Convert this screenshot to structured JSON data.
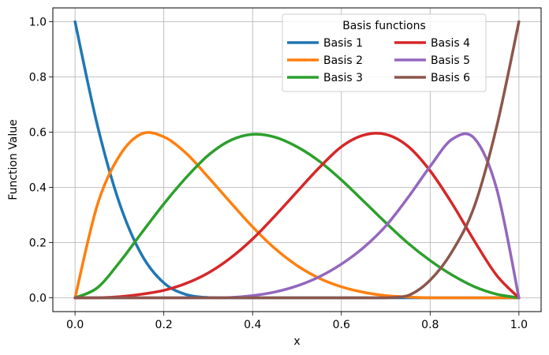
{
  "chart_data": {
    "type": "line",
    "xlabel": "x",
    "ylabel": "Function Value",
    "xlim": [
      -0.05,
      1.05
    ],
    "ylim": [
      -0.05,
      1.05
    ],
    "xticks": [
      0.0,
      0.2,
      0.4,
      0.6,
      0.8,
      1.0
    ],
    "yticks": [
      0.0,
      0.2,
      0.4,
      0.6,
      0.8,
      1.0
    ],
    "xtick_labels": [
      "0.0",
      "0.2",
      "0.4",
      "0.6",
      "0.8",
      "1.0"
    ],
    "ytick_labels": [
      "0.0",
      "0.2",
      "0.4",
      "0.6",
      "0.8",
      "1.0"
    ],
    "grid": true,
    "legend": {
      "title": "Basis functions",
      "placement": "top-right",
      "columns": 2
    },
    "x": [
      0.0,
      0.05,
      0.1,
      0.15,
      0.2,
      0.25,
      0.3,
      0.35,
      0.4,
      0.45,
      0.5,
      0.55,
      0.6,
      0.65,
      0.7,
      0.75,
      0.8,
      0.85,
      0.9,
      0.95,
      1.0
    ],
    "series": [
      {
        "name": "Basis 1",
        "color": "#1f77b4",
        "values": [
          1.0,
          0.627,
          0.343,
          0.156,
          0.054,
          0.012,
          0.001,
          0.0,
          0.0,
          0.0,
          0.0,
          0.0,
          0.0,
          0.0,
          0.0,
          0.0,
          0.0,
          0.0,
          0.0,
          0.0,
          0.0
        ]
      },
      {
        "name": "Basis 2",
        "color": "#ff7f0e",
        "values": [
          0.0,
          0.335,
          0.514,
          0.594,
          0.583,
          0.524,
          0.437,
          0.346,
          0.257,
          0.179,
          0.117,
          0.071,
          0.04,
          0.02,
          0.008,
          0.003,
          0.0,
          0.0,
          0.0,
          0.0,
          0.0
        ]
      },
      {
        "name": "Basis 3",
        "color": "#2ca02c",
        "values": [
          0.0,
          0.036,
          0.128,
          0.235,
          0.34,
          0.435,
          0.516,
          0.57,
          0.592,
          0.582,
          0.547,
          0.495,
          0.427,
          0.35,
          0.272,
          0.198,
          0.135,
          0.082,
          0.04,
          0.013,
          0.0
        ]
      },
      {
        "name": "Basis 4",
        "color": "#d62728",
        "values": [
          0.0,
          0.0,
          0.004,
          0.013,
          0.027,
          0.052,
          0.09,
          0.144,
          0.213,
          0.296,
          0.384,
          0.471,
          0.547,
          0.589,
          0.592,
          0.549,
          0.46,
          0.34,
          0.205,
          0.081,
          0.0
        ]
      },
      {
        "name": "Basis 5",
        "color": "#9467bd",
        "values": [
          0.0,
          0.0,
          0.0,
          0.0,
          0.0,
          0.0,
          0.0,
          0.001,
          0.008,
          0.021,
          0.043,
          0.076,
          0.122,
          0.182,
          0.26,
          0.363,
          0.476,
          0.575,
          0.577,
          0.394,
          0.0
        ]
      },
      {
        "name": "Basis 6",
        "color": "#8c564b",
        "values": [
          0.0,
          0.0,
          0.0,
          0.0,
          0.0,
          0.0,
          0.0,
          0.0,
          0.0,
          0.0,
          0.0,
          0.0,
          0.0,
          0.0,
          0.0,
          0.008,
          0.064,
          0.169,
          0.333,
          0.621,
          1.0
        ]
      }
    ]
  }
}
